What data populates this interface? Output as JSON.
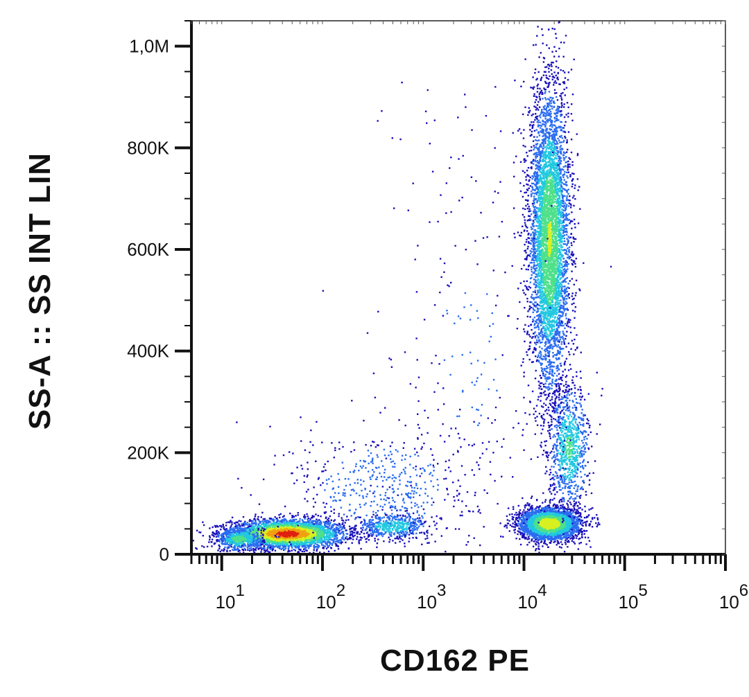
{
  "chart_data": {
    "type": "scatter",
    "title": "",
    "xlabel": "CD162 PE",
    "ylabel": "SS-A :: SS INT LIN",
    "x_scale": "log",
    "xlim": [
      5,
      1000000
    ],
    "ylim": [
      0,
      1050000
    ],
    "x_ticks": [
      {
        "value": 10,
        "base": "10",
        "exp": "1"
      },
      {
        "value": 100,
        "base": "10",
        "exp": "2"
      },
      {
        "value": 1000,
        "base": "10",
        "exp": "3"
      },
      {
        "value": 10000,
        "base": "10",
        "exp": "4"
      },
      {
        "value": 100000,
        "base": "10",
        "exp": "5"
      },
      {
        "value": 1000000,
        "base": "10",
        "exp": "6"
      }
    ],
    "y_ticks": [
      {
        "value": 0,
        "label": "0"
      },
      {
        "value": 200000,
        "label": "200K"
      },
      {
        "value": 400000,
        "label": "400K"
      },
      {
        "value": 600000,
        "label": "600K"
      },
      {
        "value": 800000,
        "label": "800K"
      },
      {
        "value": 1000000,
        "label": "1,0M"
      }
    ],
    "grid": false,
    "colormap": [
      "#1a10b8",
      "#2a6cf0",
      "#22c8e0",
      "#4ee08a",
      "#d8f020",
      "#f0a010",
      "#e02010"
    ],
    "populations": [
      {
        "x_center": 45,
        "y_center": 40000,
        "x_spread_log": 0.28,
        "y_spread": 14000,
        "count": 3500,
        "peak_density": 1.0
      },
      {
        "x_center": 15,
        "y_center": 30000,
        "x_spread_log": 0.12,
        "y_spread": 12000,
        "count": 500,
        "peak_density": 0.5
      },
      {
        "x_center": 500,
        "y_center": 55000,
        "x_spread_log": 0.18,
        "y_spread": 12000,
        "count": 500,
        "peak_density": 0.4
      },
      {
        "x_center": 400,
        "y_center": 130000,
        "x_spread_log": 0.45,
        "y_spread": 60000,
        "count": 500,
        "peak_density": 0.2
      },
      {
        "x_center": 18000,
        "y_center": 60000,
        "x_spread_log": 0.15,
        "y_spread": 16000,
        "count": 3000,
        "peak_density": 0.75
      },
      {
        "x_center": 28000,
        "y_center": 210000,
        "x_spread_log": 0.1,
        "y_spread": 60000,
        "count": 900,
        "peak_density": 0.45
      },
      {
        "x_center": 18000,
        "y_center": 620000,
        "x_spread_log": 0.1,
        "y_spread": 150000,
        "count": 5000,
        "peak_density": 0.6
      },
      {
        "x_center": 3000,
        "y_center": 400000,
        "x_spread_log": 0.5,
        "y_spread": 250000,
        "count": 300,
        "peak_density": 0.1
      }
    ]
  }
}
